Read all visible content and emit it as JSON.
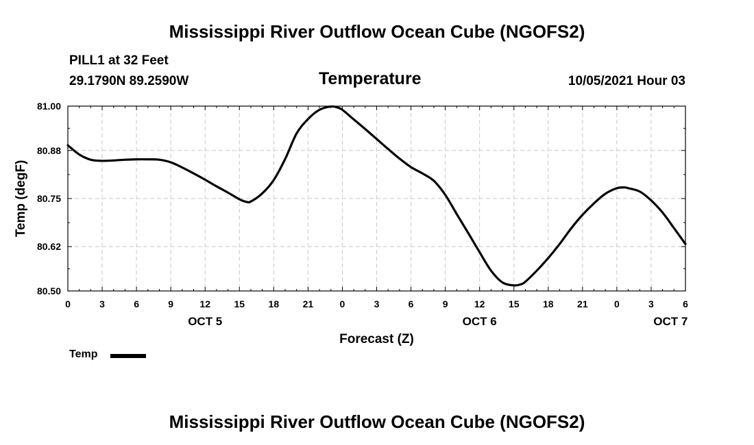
{
  "header": {
    "title_top": "Mississippi River Outflow Ocean Cube (NGOFS2)",
    "title_bottom": "Mississippi River Outflow Ocean Cube (NGOFS2)",
    "station": "PILL1 at 32 Feet",
    "coords": "29.1790N  89.2590W",
    "variable": "Temperature",
    "datetime": "10/05/2021 Hour 03"
  },
  "legend": {
    "label": "Temp"
  },
  "chart_data": {
    "type": "line",
    "ylabel": "Temp (degF)",
    "xlabel": "Forecast (Z)",
    "ylim": [
      80.5,
      81.0
    ],
    "yticks": [
      81.0,
      80.88,
      80.75,
      80.62,
      80.5
    ],
    "ytick_labels": [
      "81.00",
      "80.88",
      "80.75",
      "80.62",
      "80.50"
    ],
    "xlim": [
      0,
      54
    ],
    "xticks": [
      0,
      3,
      6,
      9,
      12,
      15,
      18,
      21,
      24,
      27,
      30,
      33,
      36,
      39,
      42,
      45,
      48,
      51,
      54
    ],
    "xtick_labels": [
      "0",
      "3",
      "6",
      "9",
      "12",
      "15",
      "18",
      "21",
      "0",
      "3",
      "6",
      "9",
      "12",
      "15",
      "18",
      "21",
      "0",
      "3",
      "6"
    ],
    "date_labels": [
      {
        "x": 12,
        "label": "OCT 5"
      },
      {
        "x": 36,
        "label": "OCT 6"
      },
      {
        "x": 52.7,
        "label": "OCT 7"
      }
    ],
    "grid": true,
    "series": [
      {
        "name": "Temp",
        "color": "#000000",
        "x": [
          0,
          1,
          2,
          3,
          4,
          5,
          6,
          7,
          8,
          9,
          10,
          11,
          12,
          13,
          14,
          15,
          15.6,
          16,
          17,
          18,
          19,
          20,
          21,
          22,
          23,
          23.6,
          24,
          25,
          26,
          27,
          28,
          29,
          30,
          31,
          32,
          33,
          34,
          35,
          36,
          37,
          38,
          39,
          39.6,
          40,
          41,
          42,
          43,
          44,
          45,
          46,
          47,
          48,
          48.7,
          49,
          50,
          51,
          52,
          53,
          54
        ],
        "y": [
          80.894,
          80.869,
          80.855,
          80.852,
          80.853,
          80.855,
          80.856,
          80.856,
          80.855,
          80.848,
          80.834,
          80.818,
          80.801,
          80.783,
          80.766,
          80.748,
          80.741,
          80.742,
          80.764,
          80.8,
          80.857,
          80.926,
          80.965,
          80.99,
          80.999,
          80.996,
          80.99,
          80.964,
          80.938,
          80.911,
          80.884,
          80.858,
          80.835,
          80.818,
          80.798,
          80.76,
          80.708,
          80.657,
          80.605,
          80.555,
          80.523,
          80.515,
          80.518,
          80.525,
          80.555,
          80.589,
          80.627,
          80.669,
          80.706,
          80.737,
          80.763,
          80.778,
          80.78,
          80.778,
          80.769,
          80.745,
          80.712,
          80.67,
          80.627
        ]
      }
    ]
  }
}
